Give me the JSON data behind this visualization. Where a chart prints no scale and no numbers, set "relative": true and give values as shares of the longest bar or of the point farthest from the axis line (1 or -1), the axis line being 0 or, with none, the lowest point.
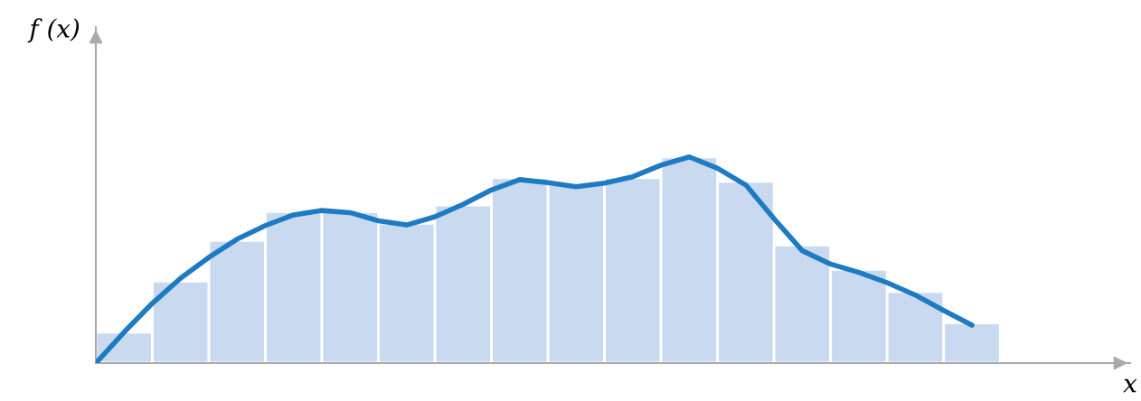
{
  "chart_data": [
    {
      "type": "bar",
      "relative": true,
      "xlabel": "x",
      "ylabel": "f (x)",
      "categories": [
        null,
        null,
        null,
        null,
        null,
        null,
        null,
        null,
        null,
        null,
        null,
        null,
        null,
        null,
        null,
        null
      ],
      "values": [
        0.15,
        0.397,
        0.594,
        0.735,
        0.735,
        0.678,
        0.766,
        0.899,
        0.867,
        0.899,
        1.0,
        0.881,
        0.572,
        0.454,
        0.347,
        0.194
      ],
      "color": "#c9daf0"
    },
    {
      "type": "line",
      "relative": true,
      "categories": [
        null,
        null,
        null,
        null,
        null,
        null,
        null,
        null,
        null,
        null,
        null,
        null,
        null,
        null,
        null,
        null,
        null,
        null,
        null,
        null,
        null,
        null,
        null,
        null,
        null,
        null,
        null,
        null,
        null,
        null,
        null,
        null
      ],
      "values": [
        0,
        0.15,
        0.29,
        0.412,
        0.513,
        0.601,
        0.667,
        0.719,
        0.74,
        0.73,
        0.69,
        0.67,
        0.71,
        0.77,
        0.84,
        0.89,
        0.875,
        0.856,
        0.873,
        0.904,
        0.96,
        1.0,
        0.945,
        0.864,
        0.7,
        0.545,
        0.48,
        0.44,
        0.39,
        0.33,
        0.255,
        0.184
      ],
      "color": "#1f7bc1"
    }
  ]
}
